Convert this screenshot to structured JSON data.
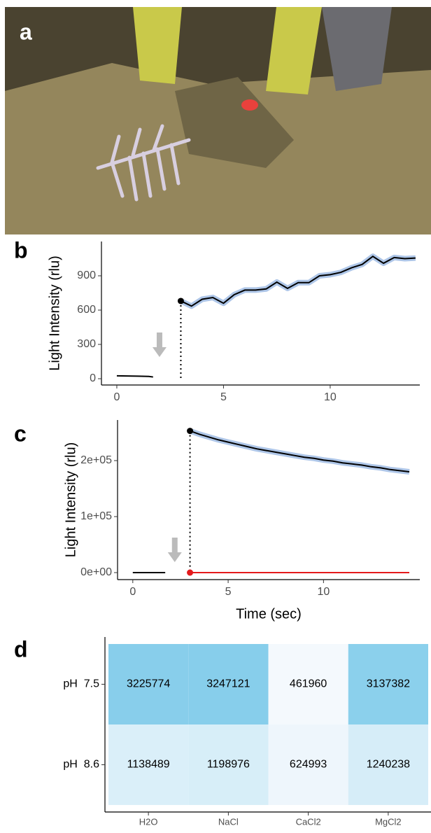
{
  "panel_labels": [
    "a",
    "b",
    "c",
    "d"
  ],
  "chart_data": [
    {
      "type": "line",
      "ylabel": "Light Intensity (rlu)",
      "xlim": [
        -0.72,
        14.2
      ],
      "xticks": [
        0,
        5,
        10
      ],
      "ylim": [
        -55,
        1200
      ],
      "yticks": [
        0,
        300,
        600,
        900
      ],
      "band_color": "#aec6e8",
      "series": [
        {
          "color": "#000000",
          "x": [
            0,
            0.5,
            1,
            1.5,
            1.7
          ],
          "values": [
            25,
            24,
            22,
            20,
            15
          ]
        },
        {
          "color": "#000000",
          "x": [
            3,
            3.5,
            4,
            4.5,
            5,
            5.5,
            6,
            6.5,
            7,
            7.5,
            8,
            8.5,
            9,
            9.5,
            10,
            10.5,
            11,
            11.5,
            12,
            12.5,
            13,
            13.5,
            14
          ],
          "values": [
            680,
            635,
            695,
            710,
            660,
            735,
            775,
            775,
            785,
            845,
            790,
            840,
            840,
            900,
            910,
            930,
            970,
            1000,
            1070,
            1010,
            1060,
            1050,
            1055
          ]
        }
      ]
    },
    {
      "type": "line",
      "ylabel": "Light Intensity (rlu)",
      "xlabel": "Time (sec)",
      "xlim": [
        -0.8,
        15.05
      ],
      "xticks": [
        0,
        5,
        10
      ],
      "ylim": [
        -12500,
        272500
      ],
      "yticks": [
        {
          "value": 0,
          "label": "0e+00"
        },
        {
          "value": 100000,
          "label": "1e+05"
        },
        {
          "value": 200000,
          "label": "2e+05"
        }
      ],
      "band_color": "#aec6e8",
      "series": [
        {
          "color": "#000000",
          "x": [
            0,
            0.5,
            1,
            1.5,
            1.7
          ],
          "values": [
            0,
            0,
            0,
            0,
            0
          ]
        },
        {
          "color": "#000000",
          "x": [
            3,
            3.5,
            4,
            4.5,
            5,
            5.5,
            6,
            6.5,
            7,
            7.5,
            8,
            8.5,
            9,
            9.5,
            10,
            10.5,
            11,
            11.5,
            12,
            12.5,
            13,
            13.5,
            14,
            14.5
          ],
          "values": [
            253000,
            247000,
            242000,
            237000,
            233000,
            229000,
            225000,
            221000,
            218000,
            215000,
            212000,
            209000,
            206000,
            204000,
            201000,
            199000,
            196000,
            194000,
            192000,
            189000,
            187000,
            184000,
            182000,
            180000
          ]
        },
        {
          "color": "#e41a1c",
          "x": [
            3,
            14.5
          ],
          "values": [
            0,
            0
          ]
        }
      ]
    },
    {
      "type": "heatmap",
      "x": [
        "H2O",
        "NaCl",
        "CaCl2",
        "MgCl2"
      ],
      "y": [
        "pH  7.5",
        "pH  8.6"
      ],
      "colors": [
        "#f4f9fd",
        "#87ceeb"
      ],
      "values": [
        [
          3225774,
          3247121,
          461960,
          3137382
        ],
        [
          1138489,
          1198976,
          624993,
          1240238
        ]
      ]
    }
  ]
}
